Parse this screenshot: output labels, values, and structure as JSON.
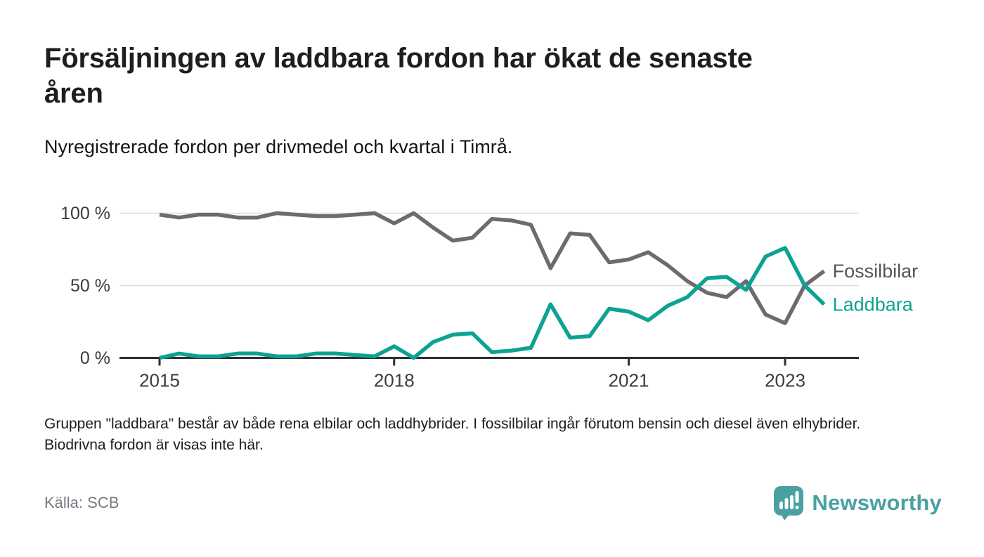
{
  "header": {
    "title": "Försäljningen av laddbara fordon har ökat de senaste åren",
    "subtitle": "Nyregistrerade fordon per drivmedel och kvartal i Timrå."
  },
  "chart_data": {
    "type": "line",
    "x": [
      "2015 Q1",
      "2015 Q2",
      "2015 Q3",
      "2015 Q4",
      "2016 Q1",
      "2016 Q2",
      "2016 Q3",
      "2016 Q4",
      "2017 Q1",
      "2017 Q2",
      "2017 Q3",
      "2017 Q4",
      "2018 Q1",
      "2018 Q2",
      "2018 Q3",
      "2018 Q4",
      "2019 Q1",
      "2019 Q2",
      "2019 Q3",
      "2019 Q4",
      "2020 Q1",
      "2020 Q2",
      "2020 Q3",
      "2020 Q4",
      "2021 Q1",
      "2021 Q2",
      "2021 Q3",
      "2021 Q4",
      "2022 Q1",
      "2022 Q2",
      "2022 Q3",
      "2022 Q4",
      "2023 Q1",
      "2023 Q2",
      "2023 Q3"
    ],
    "series": [
      {
        "name": "Fossilbilar",
        "color": "#6e6a70",
        "label_color": "#56525a",
        "values": [
          99,
          97,
          99,
          99,
          97,
          97,
          100,
          99,
          98,
          98,
          99,
          100,
          93,
          100,
          90,
          81,
          83,
          96,
          95,
          92,
          62,
          86,
          85,
          66,
          68,
          73,
          64,
          53,
          45,
          42,
          53,
          30,
          24,
          50,
          60
        ]
      },
      {
        "name": "Laddbara",
        "color": "#0ca294",
        "label_color": "#0ca294",
        "values": [
          0,
          3,
          1,
          1,
          3,
          3,
          1,
          1,
          3,
          3,
          2,
          1,
          8,
          0,
          11,
          16,
          17,
          4,
          5,
          7,
          37,
          14,
          15,
          34,
          32,
          26,
          36,
          42,
          55,
          56,
          47,
          70,
          76,
          50,
          37
        ]
      }
    ],
    "yticks": [
      {
        "value": 0,
        "label": "0 %"
      },
      {
        "value": 50,
        "label": "50 %"
      },
      {
        "value": 100,
        "label": "100 %"
      }
    ],
    "xticks": [
      {
        "index": 0,
        "label": "2015"
      },
      {
        "index": 12,
        "label": "2018"
      },
      {
        "index": 24,
        "label": "2021"
      },
      {
        "index": 32,
        "label": "2023"
      }
    ],
    "ylim": [
      0,
      100
    ],
    "grid": "horizontal",
    "legend_position": "line-end-labels",
    "colors": {
      "axis": "#2f2f2f",
      "grid": "#dcdcdc",
      "tick_text": "#3c3c3c"
    }
  },
  "footer": {
    "note": "Gruppen \"laddbara\" består av både rena elbilar och laddhybrider. I fossilbilar ingår förutom bensin och diesel även elhybrider. Biodrivna fordon är visas inte här.",
    "source": "Källa: SCB",
    "brand": "Newsworthy",
    "brand_color": "#4aa1a1"
  }
}
